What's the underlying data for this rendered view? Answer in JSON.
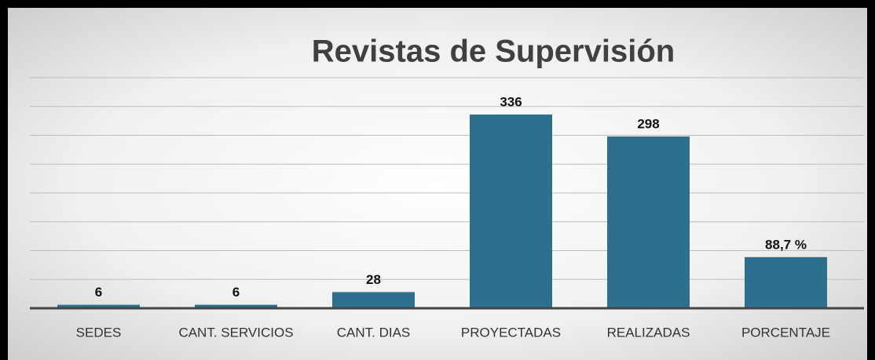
{
  "chart_data": {
    "type": "bar",
    "title": "Revistas de Supervisión",
    "categories": [
      "SEDES",
      "CANT. SERVICIOS",
      "CANT. DIAS",
      "PROYECTADAS",
      "REALIZADAS",
      "PORCENTAJE"
    ],
    "values": [
      6,
      6,
      28,
      336,
      298,
      88.7
    ],
    "value_labels": [
      "6",
      "6",
      "28",
      "336",
      "298",
      "88,7 %"
    ],
    "color": "#2f6f8e",
    "ylim": [
      0,
      400
    ],
    "yticks": [
      0,
      50,
      100,
      150,
      200,
      250,
      300,
      350,
      400
    ],
    "grid": true
  }
}
